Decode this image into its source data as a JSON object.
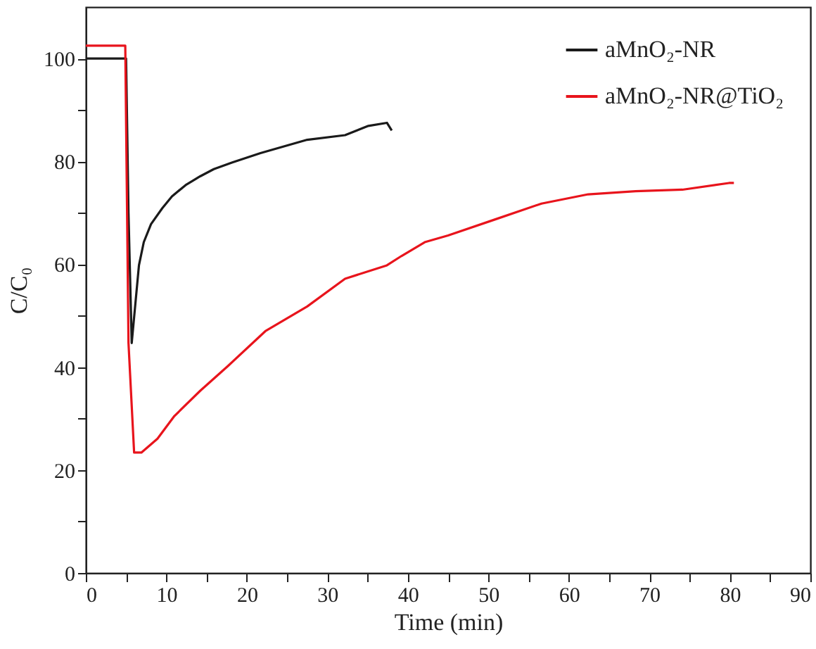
{
  "chart_data": {
    "type": "line",
    "xlabel": "Time (min)",
    "ylabel": "C/C₀",
    "xlim": [
      0,
      90
    ],
    "ylim": [
      0,
      110
    ],
    "xticks": [
      0,
      {
        "value": 5,
        "label": null
      },
      10,
      {
        "value": 15,
        "label": null
      },
      20,
      {
        "value": 25,
        "label": null
      },
      30,
      {
        "value": 35,
        "label": null
      },
      40,
      {
        "value": 45,
        "label": null
      },
      50,
      {
        "value": 55,
        "label": null
      },
      60,
      {
        "value": 65,
        "label": null
      },
      70,
      {
        "value": 75,
        "label": null
      },
      80,
      {
        "value": 85,
        "label": null
      },
      90
    ],
    "yticks": [
      0,
      {
        "value": 10,
        "label": null
      },
      20,
      {
        "value": 30,
        "label": null
      },
      40,
      {
        "value": 50,
        "label": null
      },
      60,
      {
        "value": 70,
        "label": null
      },
      80,
      {
        "value": 90,
        "label": null
      },
      100
    ],
    "legend": "top right",
    "grid": false,
    "series": [
      {
        "name": "aMnO₂-NR",
        "color": "#1a1a1a",
        "x": [
          0,
          2,
          4,
          5.0,
          5.3,
          5.7,
          6.6,
          7.2,
          8.1,
          9.5,
          10.7,
          12.4,
          14.2,
          15.9,
          18.2,
          21.7,
          27.5,
          32.2,
          35.1,
          37.4,
          38.0
        ],
        "values": [
          100,
          100,
          100,
          100,
          70,
          44.7,
          59.8,
          64.3,
          67.8,
          70.9,
          73.2,
          75.4,
          77.1,
          78.5,
          79.8,
          81.6,
          84.2,
          85.1,
          86.9,
          87.5,
          86
        ]
      },
      {
        "name": "aMnO₂-NR@TiO₂",
        "color": "#e8141c",
        "x": [
          0,
          2,
          4,
          4.9,
          5.3,
          6.0,
          6.9,
          8.9,
          11.0,
          14.2,
          17.7,
          22.3,
          27.5,
          32.2,
          37.4,
          39.2,
          42.1,
          45.0,
          50.8,
          56.6,
          62.4,
          68.3,
          74.1,
          79.9,
          80.5
        ],
        "values": [
          102.5,
          102.5,
          102.5,
          102.5,
          44.7,
          23.4,
          23.4,
          26.1,
          30.5,
          35.4,
          40.3,
          47.0,
          51.8,
          57.2,
          59.8,
          61.6,
          64.3,
          65.6,
          68.7,
          71.8,
          73.6,
          74.2,
          74.5,
          75.8,
          75.8
        ]
      }
    ]
  }
}
